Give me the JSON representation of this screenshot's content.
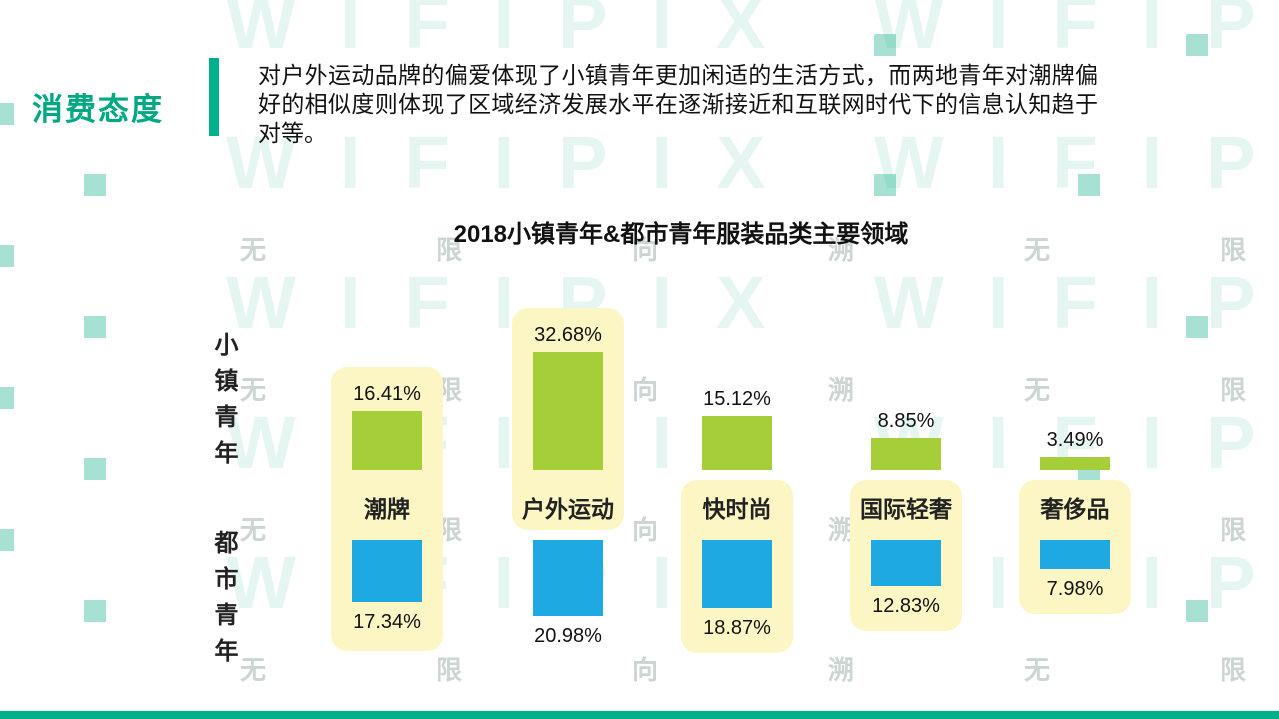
{
  "header": {
    "section_title": "消费态度",
    "description": "对户外运动品牌的偏爱体现了小镇青年更加闲适的生活方式，而两地青年对潮牌偏好的相似度则体现了区域经济发展水平在逐渐接近和互联网时代下的信息认知趋于对等。"
  },
  "watermark": {
    "brand": "WIFIPIX",
    "slogan": "无限向溯"
  },
  "chart_data": {
    "type": "bar",
    "title": "2018小镇青年&都市青年服装品类主要领域",
    "categories": [
      "潮牌",
      "户外运动",
      "快时尚",
      "国际轻奢",
      "奢侈品"
    ],
    "series": [
      {
        "name": "小镇青年",
        "direction": "up",
        "color": "#a6ce39",
        "values": [
          16.41,
          32.68,
          15.12,
          8.85,
          3.49
        ]
      },
      {
        "name": "都市青年",
        "direction": "down",
        "color": "#1fa9e2",
        "values": [
          17.34,
          20.98,
          18.87,
          12.83,
          7.98
        ]
      }
    ],
    "value_suffix": "%",
    "highlighted_segments": [
      "full",
      "top",
      "bottom",
      "bottom",
      "bottom"
    ],
    "highlight_color": "#fbf6c3",
    "legend_position": "left-row-labels",
    "grid": false
  },
  "theme": {
    "accent_green": "#00a982",
    "bar_green": "#a6ce39",
    "bar_blue": "#1fa9e2",
    "highlight_yellow": "#fbf6c3",
    "text_dark": "#111111"
  }
}
